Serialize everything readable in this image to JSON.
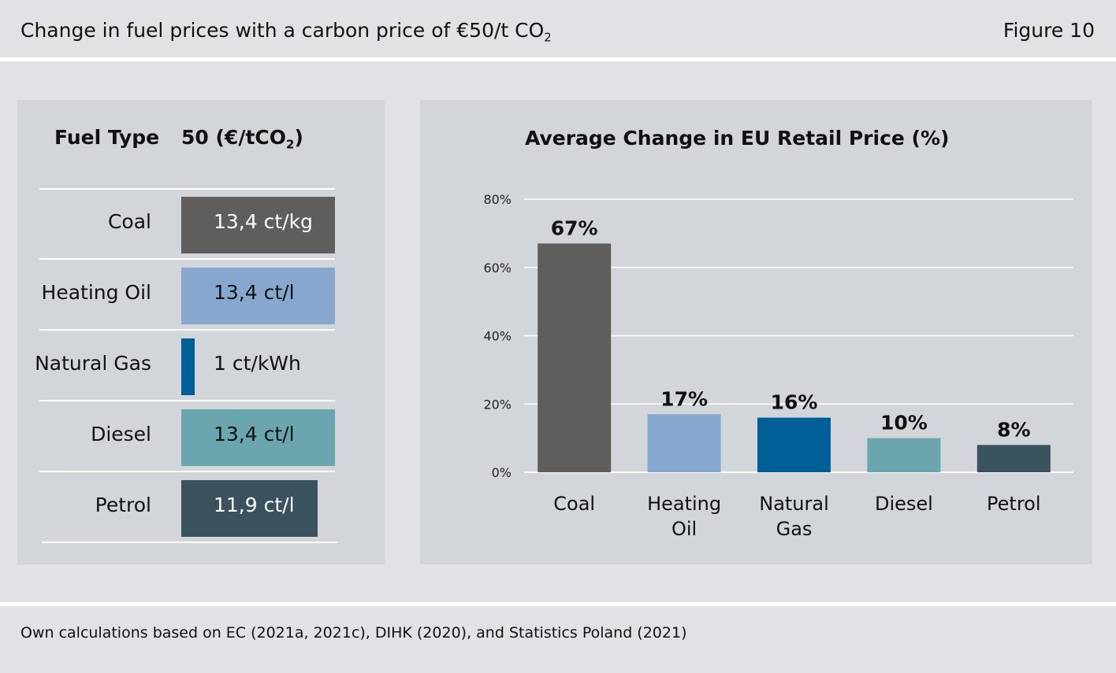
{
  "header": {
    "title": "Change in fuel prices with a carbon price of €50/t CO",
    "title_sub": "2",
    "figure_label": "Figure 10"
  },
  "table": {
    "col1_header": "Fuel Type",
    "col2_header": "50 (€/tCO",
    "col2_header_sub": "2",
    "col2_header_end": ")",
    "rows": [
      {
        "fuel": "Coal",
        "value": "13,4 ct/kg",
        "amount": 13.4,
        "color": "#5f5e5c",
        "value_color": "#ffffff"
      },
      {
        "fuel": "Heating Oil",
        "value": "13,4 ct/l",
        "amount": 13.4,
        "color": "#88a7cf",
        "value_color": "#111111"
      },
      {
        "fuel": "Natural Gas",
        "value": "1 ct/kWh",
        "amount": 1,
        "color": "#005f96",
        "value_color": "#111111"
      },
      {
        "fuel": "Diesel",
        "value": "13,4 ct/l",
        "amount": 13.4,
        "color": "#6ba6b0",
        "value_color": "#111111"
      },
      {
        "fuel": "Petrol",
        "value": "11,9 ct/l",
        "amount": 11.9,
        "color": "#3a525e",
        "value_color": "#ffffff"
      }
    ]
  },
  "chart_data": {
    "type": "bar",
    "title": "Average Change in EU Retail Price (%)",
    "xlabel": "",
    "ylabel": "",
    "categories": [
      [
        "Coal"
      ],
      [
        "Heating",
        "Oil"
      ],
      [
        "Natural",
        "Gas"
      ],
      [
        "Diesel"
      ],
      [
        "Petrol"
      ]
    ],
    "values": [
      67,
      17,
      16,
      10,
      8
    ],
    "value_labels": [
      "67%",
      "17%",
      "16%",
      "10%",
      "8%"
    ],
    "colors": [
      "#5f5e5c",
      "#88a7cf",
      "#005f96",
      "#6ba6b0",
      "#3a525e"
    ],
    "ylim": [
      0,
      80
    ],
    "yticks": [
      0,
      20,
      40,
      60,
      80
    ],
    "ytick_labels": [
      "0%",
      "20%",
      "40%",
      "60%",
      "80%"
    ],
    "grid": true
  },
  "footer": {
    "source": "Own calculations based on EC (2021a, 2021c), DIHK (2020), and Statistics Poland (2021)"
  }
}
